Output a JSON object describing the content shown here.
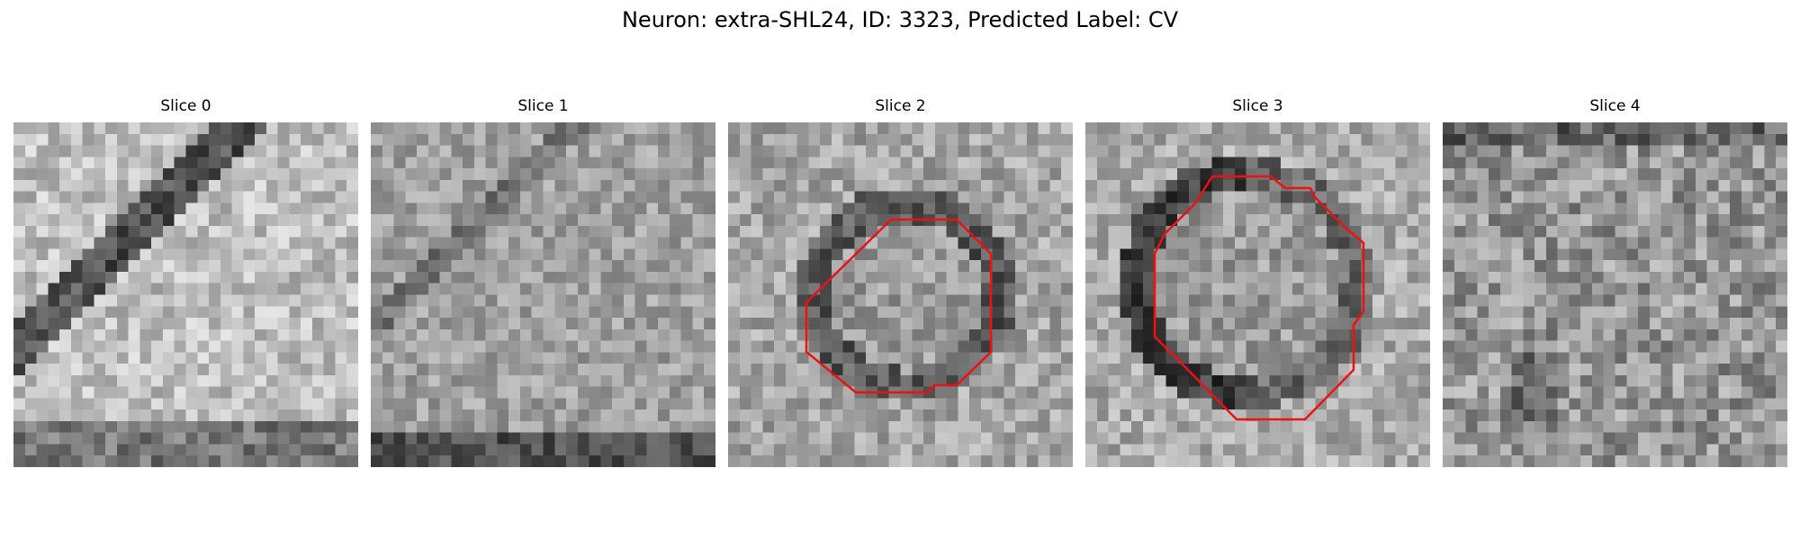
{
  "figure": {
    "title": "Neuron: extra-SHL24, ID: 3323, Predicted Label: CV"
  },
  "colors": {
    "contour": "#ee1111",
    "colormap": "grayscale"
  },
  "slices": [
    {
      "title": "Slice 0",
      "has_contour": false
    },
    {
      "title": "Slice 1",
      "has_contour": false
    },
    {
      "title": "Slice 2",
      "has_contour": true
    },
    {
      "title": "Slice 3",
      "has_contour": true
    },
    {
      "title": "Slice 4",
      "has_contour": false
    }
  ]
}
